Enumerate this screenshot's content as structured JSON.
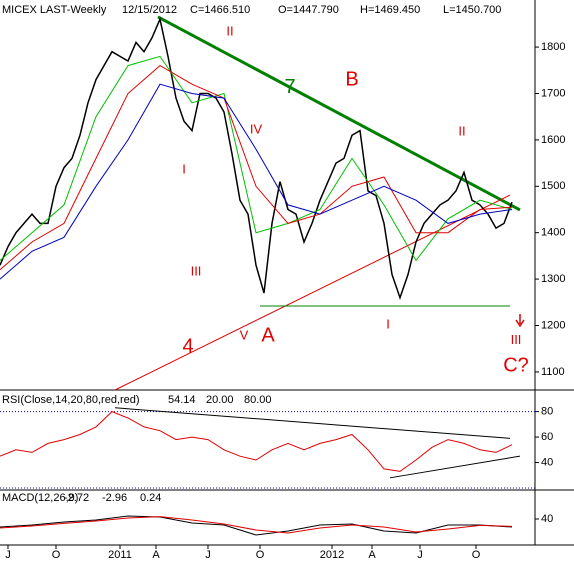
{
  "chart_data": [
    {
      "type": "line",
      "title": "MICEX LAST-Weekly",
      "header_values": [
        "12/15/2012",
        "C=1466.510",
        "O=1447.790",
        "H=1469.450",
        "L=1450.700"
      ],
      "xlim": [
        0,
        133.75
      ],
      "ylim": [
        1061,
        1895
      ],
      "yticks": [
        1100,
        1200,
        1300,
        1400,
        1500,
        1600,
        1700,
        1800
      ],
      "series": [
        {
          "color": "#000000",
          "x": [
            0,
            2,
            4,
            6,
            8,
            10,
            12,
            14,
            16,
            18,
            20,
            22,
            24,
            26,
            28,
            30,
            32,
            34,
            36,
            38,
            40,
            42,
            44,
            46,
            48,
            50,
            52,
            54,
            56,
            58,
            60,
            62,
            64,
            66,
            68,
            70,
            72,
            74,
            76,
            78,
            80,
            82,
            84,
            86,
            88,
            90,
            92,
            94,
            96,
            98,
            100,
            102,
            104,
            106,
            108,
            110,
            112,
            114,
            116,
            118,
            120,
            122,
            124,
            126,
            128
          ],
          "values": [
            1330,
            1370,
            1400,
            1420,
            1440,
            1420,
            1420,
            1500,
            1540,
            1560,
            1610,
            1680,
            1730,
            1760,
            1790,
            1780,
            1770,
            1810,
            1790,
            1820,
            1860,
            1780,
            1690,
            1640,
            1620,
            1700,
            1700,
            1690,
            1660,
            1570,
            1470,
            1440,
            1330,
            1270,
            1420,
            1510,
            1450,
            1440,
            1380,
            1420,
            1470,
            1510,
            1550,
            1560,
            1610,
            1620,
            1490,
            1480,
            1420,
            1310,
            1260,
            1310,
            1380,
            1420,
            1440,
            1460,
            1470,
            1490,
            1530,
            1470,
            1460,
            1440,
            1410,
            1420,
            1466
          ]
        },
        {
          "color": "#00c000",
          "x": [
            0,
            8,
            16,
            24,
            32,
            40,
            48,
            56,
            64,
            72,
            80,
            88,
            96,
            104,
            112,
            120,
            128
          ],
          "values": [
            1340,
            1400,
            1460,
            1650,
            1760,
            1780,
            1680,
            1700,
            1400,
            1420,
            1450,
            1560,
            1460,
            1340,
            1430,
            1470,
            1450
          ]
        },
        {
          "color": "#e00000",
          "x": [
            0,
            8,
            16,
            24,
            32,
            40,
            48,
            56,
            64,
            72,
            80,
            88,
            96,
            104,
            112,
            120,
            128
          ],
          "values": [
            1320,
            1380,
            1420,
            1560,
            1700,
            1760,
            1720,
            1690,
            1500,
            1420,
            1440,
            1500,
            1520,
            1400,
            1400,
            1450,
            1455
          ]
        },
        {
          "color": "#0000c0",
          "x": [
            0,
            8,
            16,
            24,
            32,
            40,
            48,
            56,
            64,
            72,
            80,
            88,
            96,
            104,
            112,
            120,
            128
          ],
          "values": [
            1300,
            1360,
            1390,
            1500,
            1600,
            1720,
            1700,
            1690,
            1580,
            1460,
            1440,
            1470,
            1500,
            1470,
            1420,
            1440,
            1450
          ]
        }
      ],
      "trendlines": [
        {
          "color": "#008000",
          "x": [
            39.5,
            130
          ],
          "y": [
            1865,
            1449
          ]
        },
        {
          "color": "#e00000",
          "x": [
            28.75,
            127.5
          ],
          "y": [
            1061,
            1481
          ]
        },
        {
          "color": "#008000",
          "x": [
            65,
            127.5
          ],
          "y": [
            1242,
            1242
          ]
        }
      ],
      "annotations": [
        {
          "text": "II",
          "x": 57.5,
          "y": 1832
        },
        {
          "text": "7",
          "x": 72.5,
          "y": 1712,
          "color": "#008000"
        },
        {
          "text": "B",
          "x": 88,
          "y": 1729
        },
        {
          "text": "IV",
          "x": 64,
          "y": 1621
        },
        {
          "text": "I",
          "x": 46,
          "y": 1535
        },
        {
          "text": "II",
          "x": 115.5,
          "y": 1617
        },
        {
          "text": "III",
          "x": 49,
          "y": 1315
        },
        {
          "text": "V",
          "x": 61,
          "y": 1177
        },
        {
          "text": "A",
          "x": 67,
          "y": 1177
        },
        {
          "text": "4",
          "x": 47,
          "y": 1153
        },
        {
          "text": "I",
          "x": 97,
          "y": 1201
        },
        {
          "text": "III",
          "x": 129,
          "y": 1168
        },
        {
          "text": "C?",
          "x": 129,
          "y": 1112
        }
      ]
    },
    {
      "type": "line",
      "title": "RSI(Close,14,20,80,red,red)",
      "readouts": [
        {
          "text": "54.14",
          "color": "#e00000"
        },
        {
          "text": "20.00",
          "color": "#0000c0"
        },
        {
          "text": "80.00",
          "color": "#0000c0"
        }
      ],
      "xlim": [
        0,
        133.75
      ],
      "ylim": [
        20,
        95.4
      ],
      "yticks": [
        40,
        60,
        80
      ],
      "levels": [
        20,
        80
      ],
      "series": [
        {
          "color": "#e00000",
          "x": [
            0,
            4,
            8,
            12,
            16,
            20,
            24,
            28,
            32,
            36,
            40,
            44,
            48,
            52,
            56,
            60,
            64,
            68,
            72,
            76,
            80,
            84,
            88,
            92,
            96,
            100,
            104,
            108,
            112,
            116,
            120,
            124,
            128
          ],
          "values": [
            45,
            50,
            48,
            55,
            58,
            62,
            68,
            80,
            75,
            68,
            65,
            58,
            60,
            58,
            50,
            45,
            42,
            50,
            55,
            50,
            55,
            58,
            62,
            50,
            35,
            33,
            42,
            52,
            58,
            55,
            50,
            48,
            54
          ]
        }
      ],
      "trendlines": [
        {
          "color": "#000000",
          "x": [
            28.75,
            127.5
          ],
          "y": [
            83,
            59
          ]
        },
        {
          "color": "#000000",
          "x": [
            97.5,
            130
          ],
          "y": [
            28,
            45
          ]
        }
      ]
    },
    {
      "type": "line",
      "title": "MACD(12,26,9)",
      "readouts": [
        {
          "text": "-2.72",
          "color": "#e00000"
        },
        {
          "text": "-2.96",
          "color": "#000000"
        },
        {
          "text": "0.24",
          "color": "#008000"
        }
      ],
      "xlim": [
        0,
        133.75
      ],
      "ylim": [
        -90,
        185
      ],
      "yticks": [
        40
      ],
      "xticks": [
        {
          "value": 2,
          "label": "J"
        },
        {
          "value": 14,
          "label": "O"
        },
        {
          "value": 30,
          "label": "2011"
        },
        {
          "value": 39,
          "label": "A"
        },
        {
          "value": 52,
          "label": "J"
        },
        {
          "value": 65,
          "label": "O"
        },
        {
          "value": 83,
          "label": "2012"
        },
        {
          "value": 93,
          "label": "A"
        },
        {
          "value": 105,
          "label": "J"
        },
        {
          "value": 119,
          "label": "O"
        }
      ],
      "series": [
        {
          "color": "#000000",
          "x": [
            0,
            8,
            16,
            24,
            32,
            40,
            48,
            56,
            64,
            72,
            80,
            88,
            96,
            104,
            112,
            120,
            128
          ],
          "values": [
            0,
            10,
            25,
            35,
            55,
            50,
            20,
            10,
            -40,
            -20,
            10,
            15,
            -20,
            -30,
            10,
            10,
            0
          ]
        },
        {
          "color": "#e00000",
          "x": [
            0,
            8,
            16,
            24,
            32,
            40,
            48,
            56,
            64,
            72,
            80,
            88,
            96,
            104,
            112,
            120,
            128
          ],
          "values": [
            -5,
            5,
            18,
            30,
            45,
            52,
            35,
            15,
            -15,
            -30,
            -5,
            10,
            0,
            -25,
            -10,
            8,
            3
          ]
        }
      ]
    }
  ]
}
